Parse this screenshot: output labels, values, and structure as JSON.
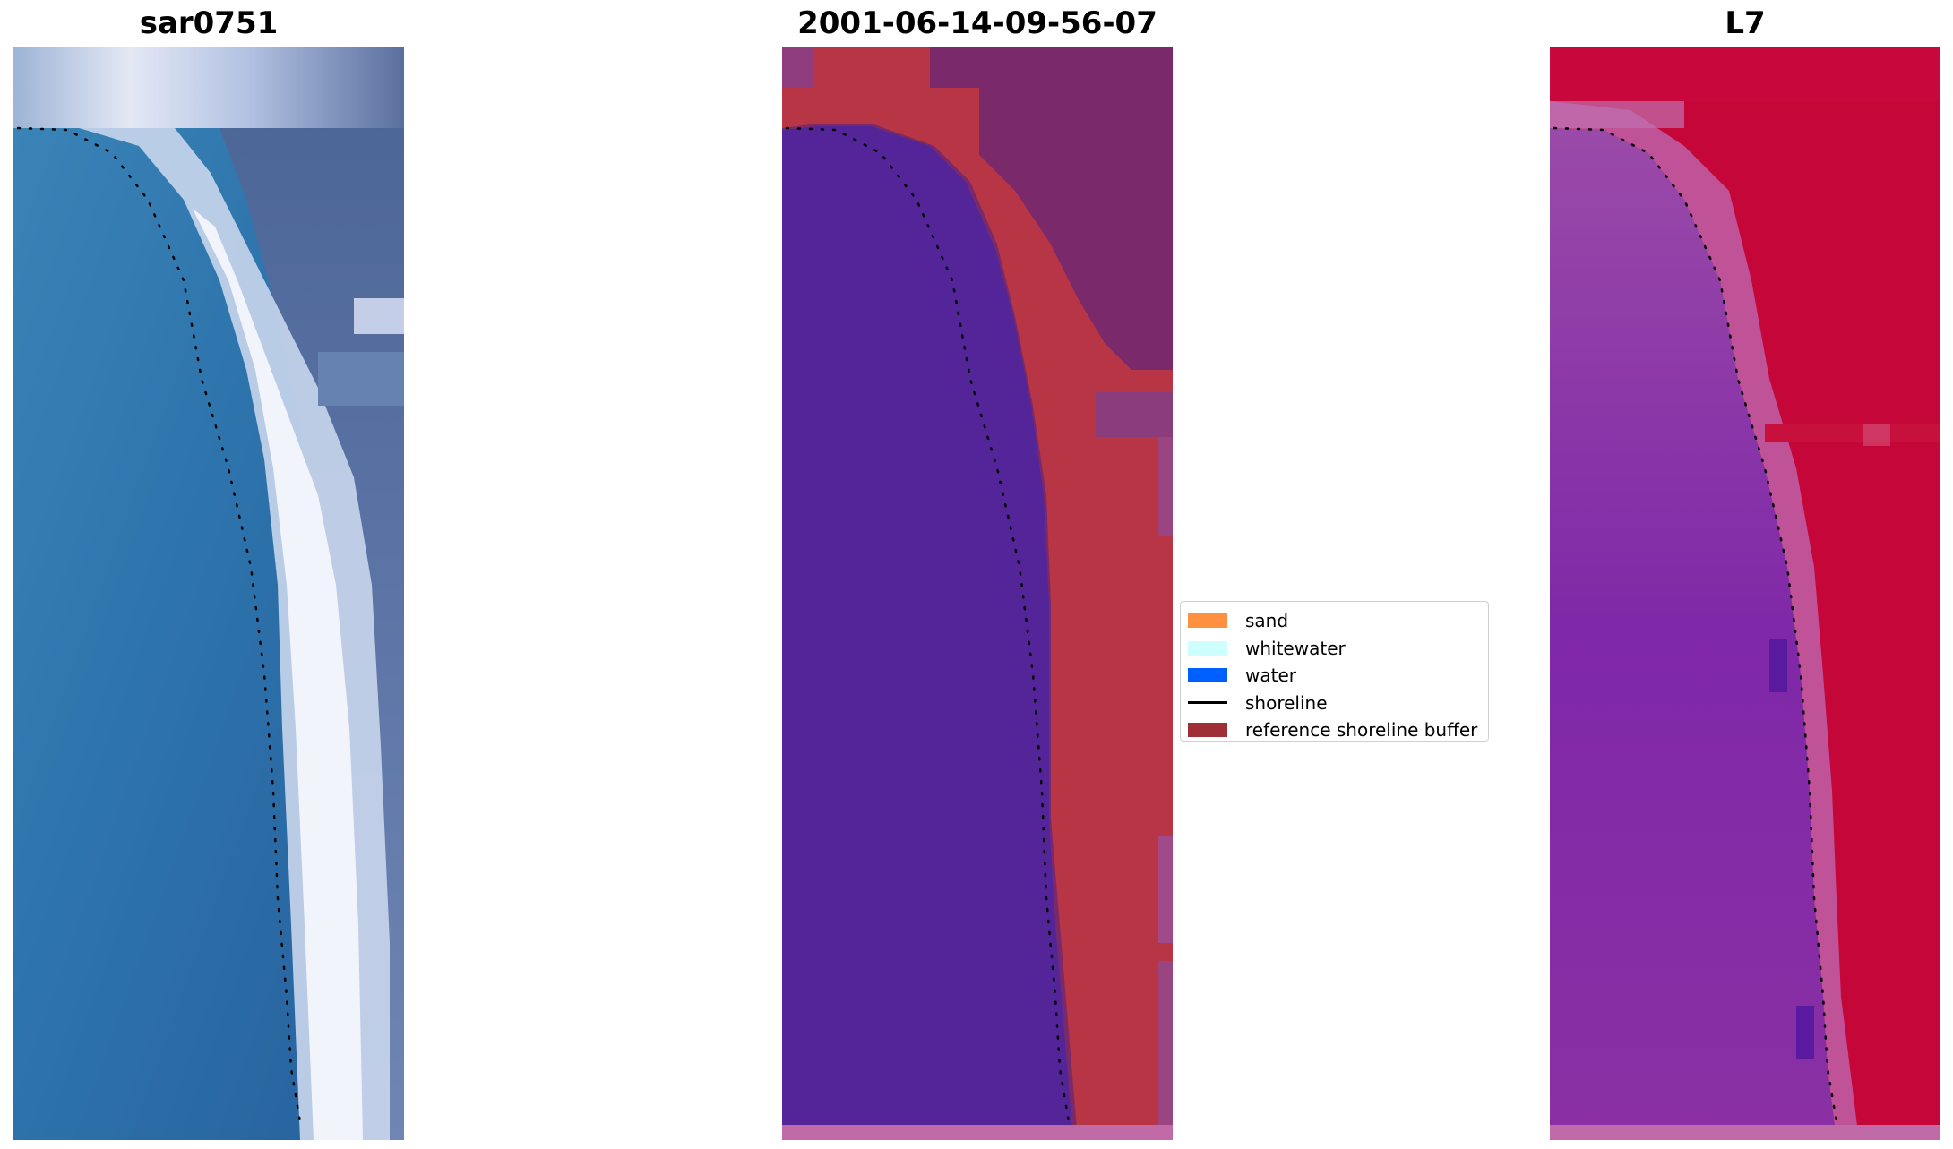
{
  "panels": {
    "rgb_title": "sar0751",
    "classified_title": "2001-06-14-09-56-07",
    "index_title": "L7"
  },
  "legend": {
    "items": [
      {
        "label": "sand",
        "color": "#ff9040",
        "kind": "patch"
      },
      {
        "label": "whitewater",
        "color": "#ccfffe",
        "kind": "patch"
      },
      {
        "label": "water",
        "color": "#0060ff",
        "kind": "patch"
      },
      {
        "label": "shoreline",
        "color": "#000000",
        "kind": "line"
      },
      {
        "label": "reference shoreline buffer",
        "color": "#9e2f36",
        "kind": "patch"
      }
    ]
  },
  "colors": {
    "rgb_water": "#2f6fa8",
    "rgb_surf": "#e8eef8",
    "rgb_land": "#4a6496",
    "class_water": "#532598",
    "class_buffer": "#b83545",
    "class_land": "#7a2a6a",
    "class_bottom": "#c06aa8",
    "index_water": "#8030a6",
    "index_edge": "#c060a8",
    "index_land": "#c40638",
    "shoreline": "#000000"
  }
}
